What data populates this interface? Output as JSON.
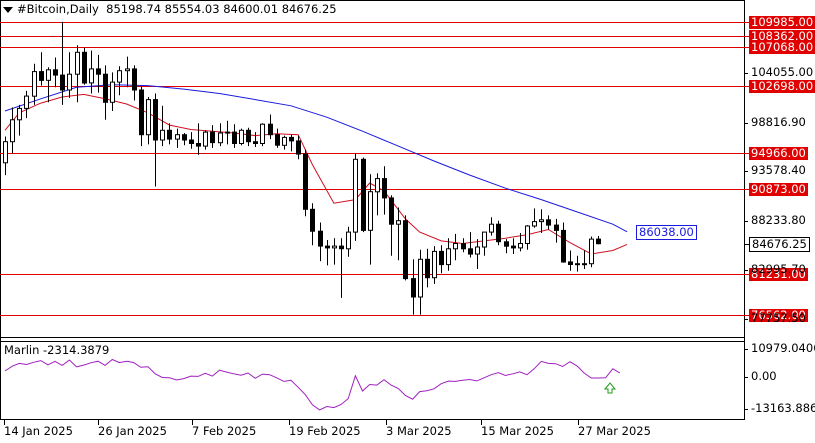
{
  "header": {
    "symbol": "#Bitcoin,Daily",
    "ohlc": "85198.74 85554.03 84600.01 84676.25"
  },
  "chart_data": [
    {
      "type": "candlestick",
      "title": "#Bitcoin,Daily",
      "ylim": [
        74500,
        112000
      ],
      "y_ticks": [
        "104055.00",
        "98816.90",
        "93578.40",
        "88233.80",
        "82995.70",
        "77757.50"
      ],
      "x_ticks": [
        "14 Jan 2025",
        "26 Jan 2025",
        "7 Feb 2025",
        "19 Feb 2025",
        "3 Mar 2025",
        "15 Mar 2025",
        "27 Mar 2025"
      ],
      "horizontal_levels": [
        {
          "value": 109985.0,
          "label": "109985.00"
        },
        {
          "value": 108362.0,
          "label": "108362.00"
        },
        {
          "value": 107068.0,
          "label": "107068.00"
        },
        {
          "value": 102698.0,
          "label": "102698.00"
        },
        {
          "value": 94966.0,
          "label": "94966.00"
        },
        {
          "value": 90873.0,
          "label": "90873.00"
        },
        {
          "value": 81231.0,
          "label": "81231.00"
        },
        {
          "value": 76562.0,
          "label": "76562.00"
        }
      ],
      "current_price": {
        "value": 84676.25,
        "label": "84676.25"
      },
      "ma_label": {
        "value": 86038.0,
        "label": "86038.00"
      },
      "candles": [
        [
          93900,
          96900,
          92500,
          96300
        ],
        [
          96300,
          100200,
          95000,
          98800
        ],
        [
          98800,
          100500,
          97000,
          100100
        ],
        [
          100100,
          102100,
          99000,
          101500
        ],
        [
          101500,
          105200,
          100500,
          104300
        ],
        [
          104300,
          106500,
          102700,
          103300
        ],
        [
          103300,
          104800,
          100800,
          104500
        ],
        [
          104500,
          105900,
          102500,
          103900
        ],
        [
          103900,
          109985,
          100500,
          102200
        ],
        [
          102200,
          106500,
          101300,
          104000
        ],
        [
          104000,
          107300,
          100800,
          106500
        ],
        [
          106500,
          107000,
          102800,
          103000
        ],
        [
          103000,
          106700,
          101800,
          104600
        ],
        [
          104600,
          106200,
          101900,
          104000
        ],
        [
          104000,
          105000,
          98800,
          100800
        ],
        [
          100800,
          104200,
          99800,
          103100
        ],
        [
          103100,
          104900,
          101600,
          104400
        ],
        [
          104400,
          106000,
          102500,
          104600
        ],
        [
          104600,
          105000,
          101000,
          102200
        ],
        [
          102200,
          102600,
          95800,
          97100
        ],
        [
          97100,
          101400,
          96000,
          101100
        ],
        [
          101100,
          101800,
          91200,
          96500
        ],
        [
          96500,
          100400,
          95800,
          97600
        ],
        [
          97600,
          98400,
          96000,
          96600
        ],
        [
          96600,
          97800,
          95600,
          97100
        ],
        [
          97100,
          97300,
          95900,
          96500
        ],
        [
          96500,
          97400,
          95500,
          96100
        ],
        [
          96100,
          98400,
          94800,
          95800
        ],
        [
          95800,
          97600,
          95400,
          97400
        ],
        [
          97400,
          98200,
          95600,
          96200
        ],
        [
          96200,
          98400,
          95800,
          97300
        ],
        [
          97300,
          98700,
          96000,
          97400
        ],
        [
          97400,
          98300,
          95600,
          96100
        ],
        [
          96100,
          97800,
          95900,
          97600
        ],
        [
          97600,
          97900,
          95800,
          96300
        ],
        [
          96300,
          97400,
          95700,
          96100
        ],
        [
          96100,
          98400,
          95800,
          98300
        ],
        [
          98300,
          99400,
          96600,
          97100
        ],
        [
          97100,
          97800,
          95600,
          95900
        ],
        [
          95900,
          97000,
          95400,
          96800
        ],
        [
          96800,
          97100,
          95200,
          96400
        ],
        [
          96400,
          97000,
          94300,
          94900
        ],
        [
          94900,
          95400,
          87800,
          88600
        ],
        [
          88600,
          89300,
          84500,
          86100
        ],
        [
          86100,
          87100,
          82700,
          84400
        ],
        [
          84400,
          85100,
          82200,
          84200
        ],
        [
          84200,
          85300,
          82300,
          84400
        ],
        [
          84400,
          85300,
          78500,
          84100
        ],
        [
          84100,
          86600,
          83200,
          86000
        ],
        [
          86000,
          95000,
          85000,
          94300
        ],
        [
          94300,
          94500,
          86000,
          86200
        ],
        [
          86200,
          92600,
          82300,
          90600
        ],
        [
          90600,
          92700,
          87900,
          92100
        ],
        [
          92100,
          93500,
          88000,
          89900
        ],
        [
          89900,
          90200,
          83300,
          86900
        ],
        [
          86900,
          88800,
          82800,
          87300
        ],
        [
          87300,
          87900,
          80500,
          80700
        ],
        [
          80700,
          82900,
          76600,
          78600
        ],
        [
          78600,
          84000,
          76600,
          82900
        ],
        [
          82900,
          84100,
          79700,
          80800
        ],
        [
          80800,
          84400,
          80100,
          83800
        ],
        [
          83800,
          84500,
          81300,
          82300
        ],
        [
          82300,
          85300,
          81600,
          84100
        ],
        [
          84100,
          85800,
          82800,
          84700
        ],
        [
          84700,
          85300,
          83700,
          84100
        ],
        [
          84100,
          86000,
          83100,
          83500
        ],
        [
          83500,
          85200,
          81800,
          84300
        ],
        [
          84300,
          86000,
          83300,
          86000
        ],
        [
          86000,
          87700,
          85600,
          86900
        ],
        [
          86900,
          87300,
          84500,
          84900
        ],
        [
          84900,
          85200,
          83600,
          84400
        ],
        [
          84400,
          85300,
          83500,
          84200
        ],
        [
          84200,
          85900,
          83800,
          84700
        ],
        [
          84700,
          86800,
          84000,
          86700
        ],
        [
          86700,
          88700,
          86500,
          87200
        ],
        [
          87200,
          88600,
          85900,
          87400
        ],
        [
          87400,
          87900,
          86300,
          86800
        ],
        [
          86800,
          87500,
          84800,
          86200
        ],
        [
          86200,
          87100,
          82500,
          82600
        ],
        [
          82600,
          83900,
          81600,
          82300
        ],
        [
          82300,
          83300,
          81500,
          82400
        ],
        [
          82400,
          83900,
          81800,
          82400
        ],
        [
          82400,
          85500,
          82000,
          85200
        ],
        [
          85198.74,
          85554.03,
          84600.01,
          84676.25
        ]
      ],
      "sma_blue": [
        [
          0,
          99800
        ],
        [
          5,
          101200
        ],
        [
          10,
          102500
        ],
        [
          15,
          102800
        ],
        [
          20,
          102700
        ],
        [
          25,
          102300
        ],
        [
          30,
          101800
        ],
        [
          35,
          101100
        ],
        [
          40,
          100400
        ],
        [
          45,
          99100
        ],
        [
          50,
          97500
        ],
        [
          55,
          95800
        ],
        [
          60,
          94100
        ],
        [
          65,
          92500
        ],
        [
          70,
          91000
        ],
        [
          75,
          89700
        ],
        [
          80,
          88300
        ],
        [
          85,
          86900
        ],
        [
          87,
          86038
        ]
      ],
      "ema_red": [
        [
          0,
          97600
        ],
        [
          2,
          99600
        ],
        [
          5,
          100700
        ],
        [
          8,
          101400
        ],
        [
          11,
          101700
        ],
        [
          14,
          101200
        ],
        [
          17,
          100600
        ],
        [
          20,
          99600
        ],
        [
          23,
          98200
        ],
        [
          26,
          97700
        ],
        [
          29,
          97500
        ],
        [
          32,
          97300
        ],
        [
          35,
          97000
        ],
        [
          38,
          97200
        ],
        [
          41,
          97100
        ],
        [
          43,
          93700
        ],
        [
          46,
          89300
        ],
        [
          49,
          89700
        ],
        [
          51,
          91600
        ],
        [
          53,
          90700
        ],
        [
          56,
          87500
        ],
        [
          58,
          86000
        ],
        [
          61,
          85000
        ],
        [
          64,
          84700
        ],
        [
          67,
          85000
        ],
        [
          70,
          85300
        ],
        [
          73,
          85700
        ],
        [
          76,
          86300
        ],
        [
          79,
          84800
        ],
        [
          82,
          83500
        ],
        [
          85,
          83900
        ],
        [
          87,
          84600
        ]
      ],
      "indicator": {
        "label": "Marlin -2314.3879",
        "y_ticks": [
          "10979.0406",
          "0.00",
          "-13163.8865"
        ],
        "ylim": [
          -13163.8865,
          10979.0406
        ],
        "values": [
          [
            0,
            2100
          ],
          [
            1,
            3800
          ],
          [
            2,
            4800
          ],
          [
            3,
            4400
          ],
          [
            4,
            5200
          ],
          [
            5,
            5800
          ],
          [
            6,
            4300
          ],
          [
            7,
            5500
          ],
          [
            8,
            4100
          ],
          [
            9,
            6000
          ],
          [
            10,
            3600
          ],
          [
            11,
            4200
          ],
          [
            12,
            5000
          ],
          [
            13,
            5600
          ],
          [
            14,
            4100
          ],
          [
            15,
            6200
          ],
          [
            16,
            5100
          ],
          [
            17,
            5600
          ],
          [
            18,
            5100
          ],
          [
            19,
            3400
          ],
          [
            20,
            3600
          ],
          [
            21,
            1100
          ],
          [
            22,
            -200
          ],
          [
            23,
            -300
          ],
          [
            24,
            -1100
          ],
          [
            25,
            -600
          ],
          [
            26,
            300
          ],
          [
            27,
            200
          ],
          [
            28,
            1300
          ],
          [
            29,
            300
          ],
          [
            30,
            2400
          ],
          [
            31,
            1700
          ],
          [
            32,
            1100
          ],
          [
            33,
            600
          ],
          [
            34,
            1400
          ],
          [
            35,
            -500
          ],
          [
            36,
            1000
          ],
          [
            37,
            800
          ],
          [
            38,
            -300
          ],
          [
            39,
            -1600
          ],
          [
            40,
            -1200
          ],
          [
            41,
            -3700
          ],
          [
            42,
            -6300
          ],
          [
            43,
            -9900
          ],
          [
            44,
            -11700
          ],
          [
            45,
            -10500
          ],
          [
            46,
            -10900
          ],
          [
            47,
            -9800
          ],
          [
            48,
            -7700
          ],
          [
            49,
            400
          ],
          [
            50,
            -5000
          ],
          [
            51,
            -2700
          ],
          [
            52,
            -2900
          ],
          [
            53,
            -1000
          ],
          [
            54,
            -2900
          ],
          [
            55,
            -4100
          ],
          [
            56,
            -6600
          ],
          [
            57,
            -7900
          ],
          [
            58,
            -5200
          ],
          [
            59,
            -4900
          ],
          [
            60,
            -4200
          ],
          [
            61,
            -2400
          ],
          [
            62,
            -1500
          ],
          [
            63,
            -1600
          ],
          [
            64,
            -1200
          ],
          [
            65,
            -900
          ],
          [
            66,
            -1400
          ],
          [
            67,
            -300
          ],
          [
            68,
            800
          ],
          [
            69,
            1500
          ],
          [
            70,
            500
          ],
          [
            71,
            1100
          ],
          [
            72,
            1800
          ],
          [
            73,
            800
          ],
          [
            74,
            2900
          ],
          [
            75,
            5500
          ],
          [
            76,
            4800
          ],
          [
            77,
            4700
          ],
          [
            78,
            3700
          ],
          [
            79,
            5400
          ],
          [
            80,
            3900
          ],
          [
            81,
            1400
          ],
          [
            82,
            -400
          ],
          [
            83,
            -400
          ],
          [
            84,
            -300
          ],
          [
            85,
            2900
          ],
          [
            86,
            1400
          ]
        ]
      }
    }
  ]
}
